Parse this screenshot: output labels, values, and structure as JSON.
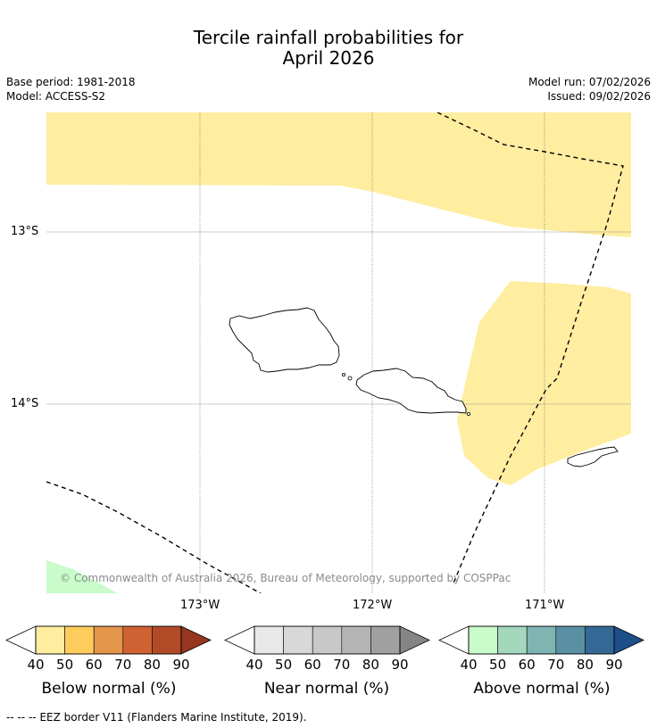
{
  "title_line1": "Tercile rainfall probabilities for",
  "title_line2": "April 2026",
  "base_period": "Base period: 1981-2018",
  "model": "Model: ACCESS-S2",
  "model_run": "Model run: 07/02/2026",
  "issued": "Issued: 09/02/2026",
  "copyright": "© Commonwealth of Australia 2026, Bureau of Meteorology, supported by COSPPac",
  "latitudes": [
    "13°S",
    "14°S"
  ],
  "longitudes": [
    "173°W",
    "172°W",
    "171°W"
  ],
  "colorbars": [
    {
      "title": "Below normal (%)",
      "ticks": [
        "40",
        "50",
        "60",
        "70",
        "80",
        "90"
      ],
      "colors": [
        "#ffeda0",
        "#fecc5c",
        "#e3954a",
        "#cf6232",
        "#b24a28",
        "#963620"
      ]
    },
    {
      "title": "Near normal (%)",
      "ticks": [
        "40",
        "50",
        "60",
        "70",
        "80",
        "90"
      ],
      "colors": [
        "#e8e8e8",
        "#d8d8d8",
        "#c8c8c8",
        "#b4b4b4",
        "#a0a0a0",
        "#858585"
      ]
    },
    {
      "title": "Above normal (%)",
      "ticks": [
        "40",
        "50",
        "60",
        "70",
        "80",
        "90"
      ],
      "colors": [
        "#c9fcca",
        "#a4d8bd",
        "#7fb4b2",
        "#5a90a4",
        "#346996",
        "#1d4f89"
      ]
    }
  ],
  "legend_line_symbol": "--  --  --",
  "legend_line_text": "EEZ border V11 (Flanders Marine Institute, 2019).",
  "colors": {
    "below_fill": "#ffeda0",
    "above_fill": "#c9fcca",
    "grid": "#999999",
    "copyright": "#8a8a8a"
  }
}
